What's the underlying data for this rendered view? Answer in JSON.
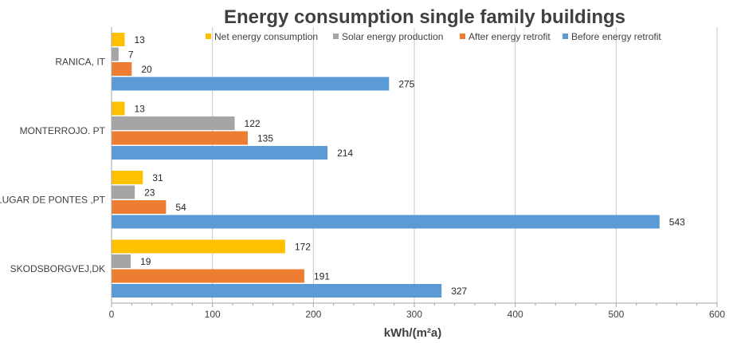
{
  "chart_data": {
    "type": "bar",
    "orientation": "horizontal",
    "title": "Energy consumption single family buildings",
    "xlabel": "kWh/(m²a)",
    "ylabel": "",
    "xlim": [
      0,
      600
    ],
    "x_ticks": [
      "0",
      "100",
      "200",
      "300",
      "400",
      "500",
      "600"
    ],
    "grid": "vertical",
    "legend_position": "top-right",
    "categories": [
      "RANICA, IT",
      "MONTERROJO. PT",
      "LUGAR DE PONTES ,PT",
      "SKODSBORGVEJ,DK"
    ],
    "series": [
      {
        "name": "Net energy consumption",
        "color": "#FFC000",
        "values": [
          13,
          13,
          31,
          172
        ]
      },
      {
        "name": "Solar energy production",
        "color": "#A5A5A5",
        "values": [
          7,
          122,
          23,
          19
        ]
      },
      {
        "name": "After energy retrofit",
        "color": "#ED7D31",
        "values": [
          20,
          135,
          54,
          191
        ]
      },
      {
        "name": "Before energy retrofit",
        "color": "#5B9BD5",
        "values": [
          275,
          214,
          543,
          327
        ]
      }
    ]
  }
}
